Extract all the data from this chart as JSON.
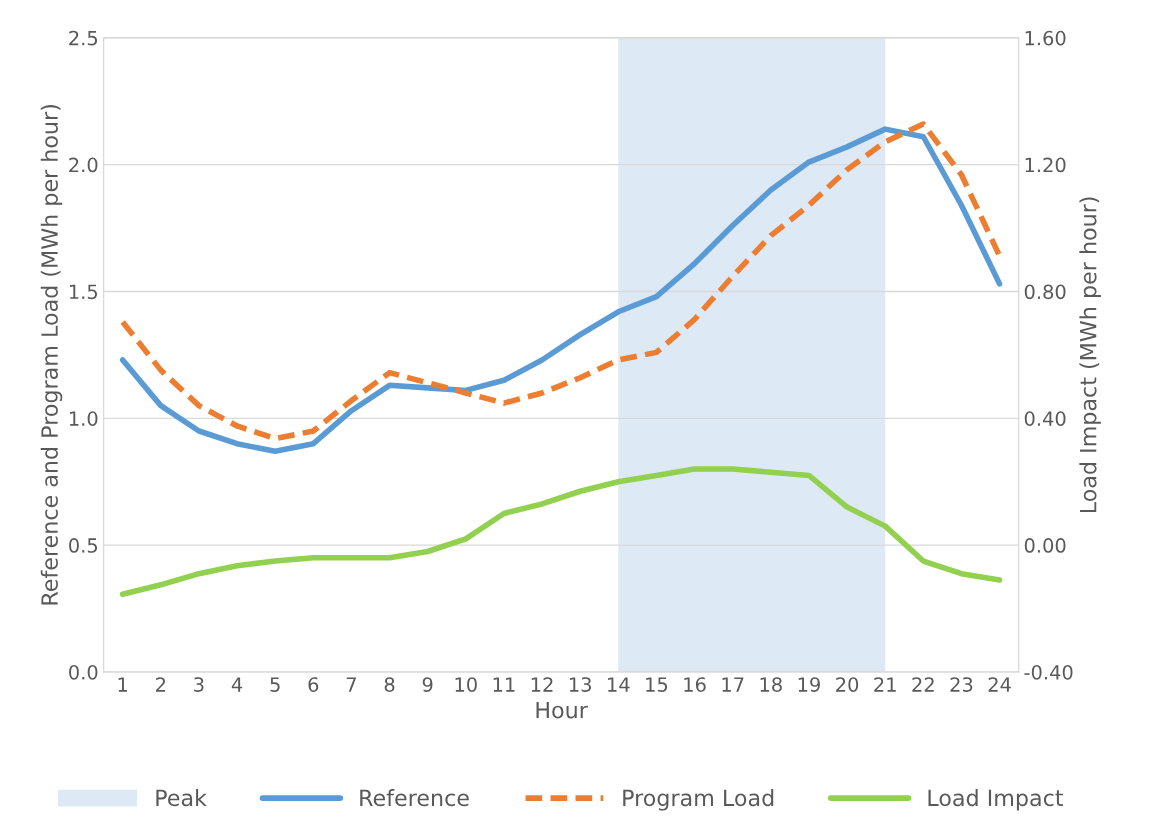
{
  "chart_data": {
    "type": "line",
    "xlabel": "Hour",
    "ylabel": "Reference and Program Load (MWh per hour)",
    "y2label": "Load Impact (MWh per hour)",
    "x": [
      1,
      2,
      3,
      4,
      5,
      6,
      7,
      8,
      9,
      10,
      11,
      12,
      13,
      14,
      15,
      16,
      17,
      18,
      19,
      20,
      21,
      22,
      23,
      24
    ],
    "xlim": [
      0.5,
      24.5
    ],
    "xticks": [
      1,
      2,
      3,
      4,
      5,
      6,
      7,
      8,
      9,
      10,
      11,
      12,
      13,
      14,
      15,
      16,
      17,
      18,
      19,
      20,
      21,
      22,
      23,
      24
    ],
    "ylim": [
      0,
      2.5
    ],
    "yticks": [
      {
        "value": 0,
        "label": "0.0"
      },
      {
        "value": 0.5,
        "label": "0.5"
      },
      {
        "value": 1,
        "label": "1.0"
      },
      {
        "value": 1.5,
        "label": "1.5"
      },
      {
        "value": 2,
        "label": "2.0"
      },
      {
        "value": 2.5,
        "label": "2.5"
      }
    ],
    "y2lim": [
      -0.4,
      1.6
    ],
    "y2ticks": [
      {
        "value": -0.4,
        "label": "-0.40"
      },
      {
        "value": 0,
        "label": "0.00"
      },
      {
        "value": 0.4,
        "label": "0.40"
      },
      {
        "value": 0.8,
        "label": "0.80"
      },
      {
        "value": 1.2,
        "label": "1.20"
      },
      {
        "value": 1.6,
        "label": "1.60"
      }
    ],
    "grid": "y",
    "legend": "bottom",
    "bands": [
      {
        "axis": "x",
        "from": 14,
        "to": 21,
        "label": "Peak",
        "color": "#dde9f5"
      }
    ],
    "series": [
      {
        "name": "Reference",
        "color": "#5b9bd5",
        "line_style": "solid",
        "values": [
          1.23,
          1.05,
          0.95,
          0.9,
          0.87,
          0.9,
          1.03,
          1.13,
          1.12,
          1.11,
          1.15,
          1.23,
          1.33,
          1.42,
          1.48,
          1.61,
          1.76,
          1.9,
          2.01,
          2.07,
          2.14,
          2.11,
          1.84,
          1.53
        ]
      },
      {
        "name": "Program Load",
        "color": "#ed7d31",
        "line_style": "dashed",
        "values": [
          1.38,
          1.19,
          1.05,
          0.97,
          0.92,
          0.95,
          1.07,
          1.18,
          1.14,
          1.1,
          1.06,
          1.1,
          1.16,
          1.23,
          1.26,
          1.39,
          1.56,
          1.72,
          1.84,
          1.98,
          2.09,
          2.16,
          1.96,
          1.64
        ]
      },
      {
        "name": "Load Impact",
        "color": "#92d050",
        "line_style": "solid",
        "axis": "y2",
        "values": [
          -0.155,
          -0.125,
          -0.09,
          -0.065,
          -0.05,
          -0.04,
          -0.04,
          -0.04,
          -0.02,
          0.02,
          0.1,
          0.13,
          0.17,
          0.2,
          0.22,
          0.24,
          0.24,
          0.23,
          0.22,
          0.12,
          0.06,
          -0.05,
          -0.09,
          -0.11
        ]
      }
    ]
  }
}
